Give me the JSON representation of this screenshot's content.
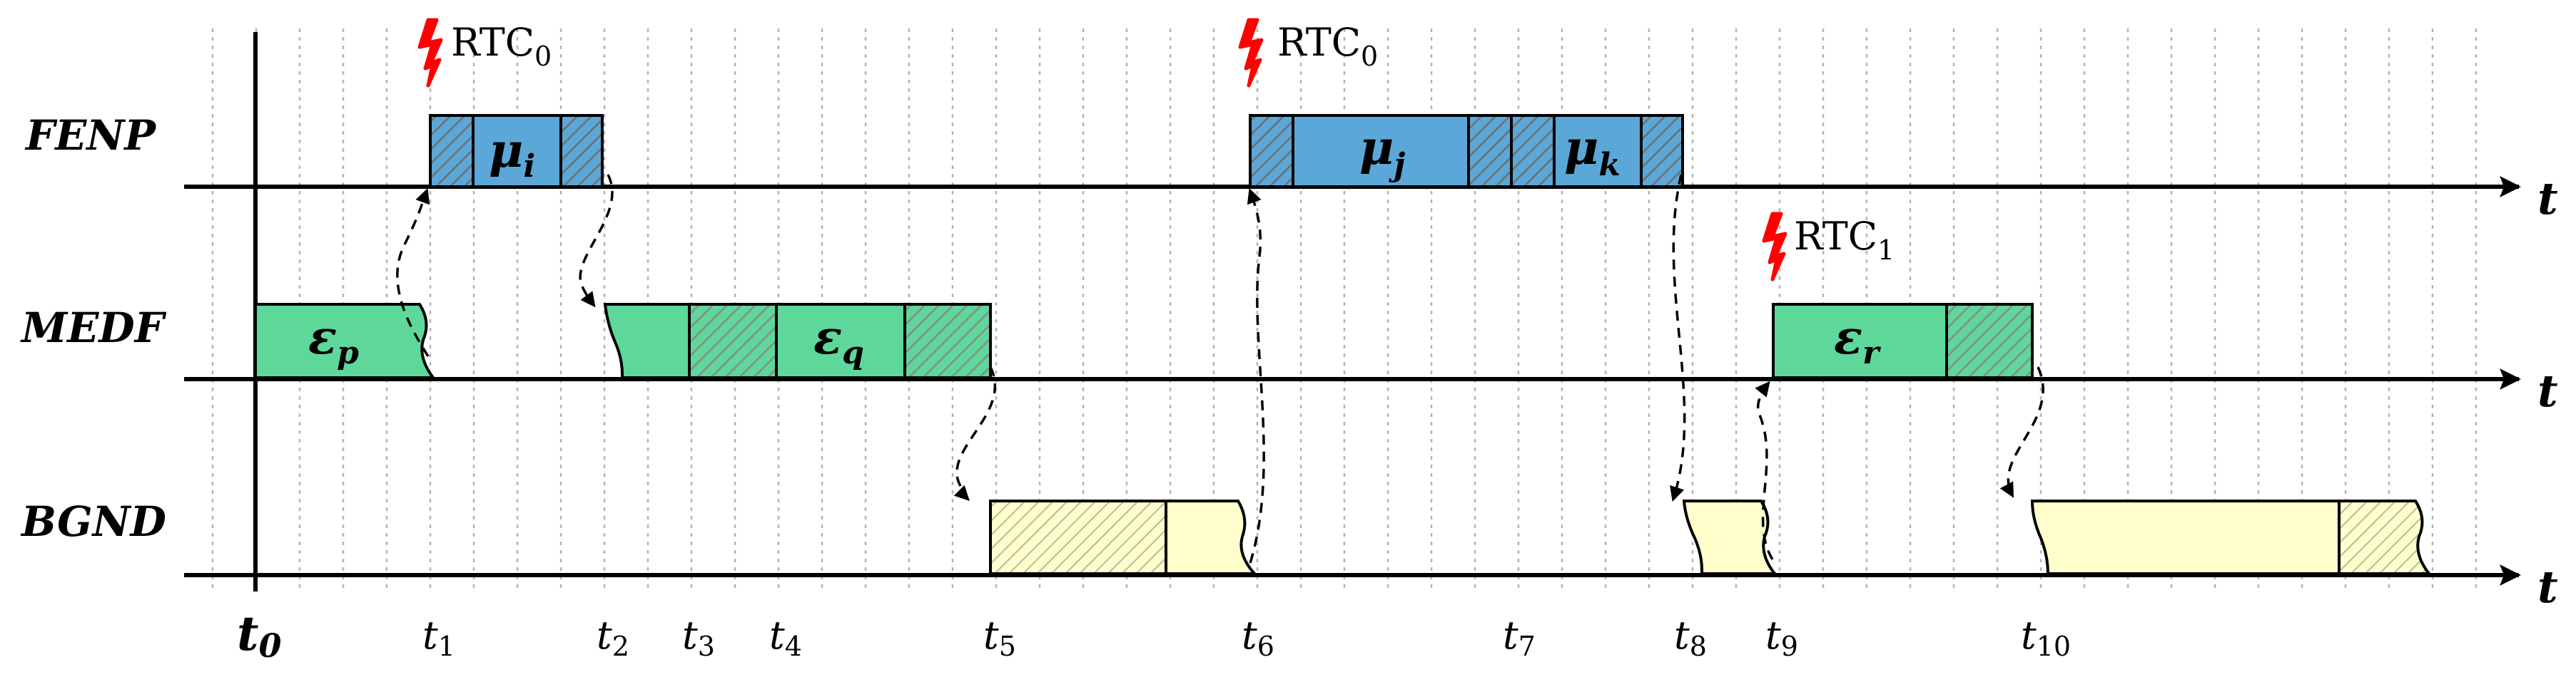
{
  "lanes": [
    {
      "id": "fenp",
      "label": "FENP"
    },
    {
      "id": "medf",
      "label": "MEDF"
    },
    {
      "id": "bgnd",
      "label": "BGND"
    }
  ],
  "axis_label": "t",
  "origin_label": {
    "main": "t",
    "sub": "0"
  },
  "ticks": [
    {
      "id": "t1",
      "main": "t",
      "sub": "1"
    },
    {
      "id": "t2",
      "main": "t",
      "sub": "2"
    },
    {
      "id": "t3",
      "main": "t",
      "sub": "3"
    },
    {
      "id": "t4",
      "main": "t",
      "sub": "4"
    },
    {
      "id": "t5",
      "main": "t",
      "sub": "5"
    },
    {
      "id": "t6",
      "main": "t",
      "sub": "6"
    },
    {
      "id": "t7",
      "main": "t",
      "sub": "7"
    },
    {
      "id": "t8",
      "main": "t",
      "sub": "8"
    },
    {
      "id": "t9",
      "main": "t",
      "sub": "9"
    },
    {
      "id": "t10",
      "main": "t",
      "sub": "10"
    }
  ],
  "rtc_events": [
    {
      "id": "rtc-1",
      "main": "RTC",
      "sub": "0"
    },
    {
      "id": "rtc-2",
      "main": "RTC",
      "sub": "0"
    },
    {
      "id": "rtc-3",
      "main": "RTC",
      "sub": "1"
    }
  ],
  "jobs": [
    {
      "id": "mu-i",
      "main": "μ",
      "sub": "i"
    },
    {
      "id": "mu-j",
      "main": "μ",
      "sub": "j"
    },
    {
      "id": "mu-k",
      "main": "μ",
      "sub": "k"
    },
    {
      "id": "eps-p",
      "main": "ε",
      "sub": "p"
    },
    {
      "id": "eps-q",
      "main": "ε",
      "sub": "q"
    },
    {
      "id": "eps-r",
      "main": "ε",
      "sub": "r"
    }
  ],
  "colors": {
    "fenp_fill": "#5ba8d8",
    "medf_fill": "#5ed79b",
    "bgnd_fill": "#ffffcc",
    "hatch_line": "#777777",
    "rtc_bolt": "#ff0000"
  }
}
